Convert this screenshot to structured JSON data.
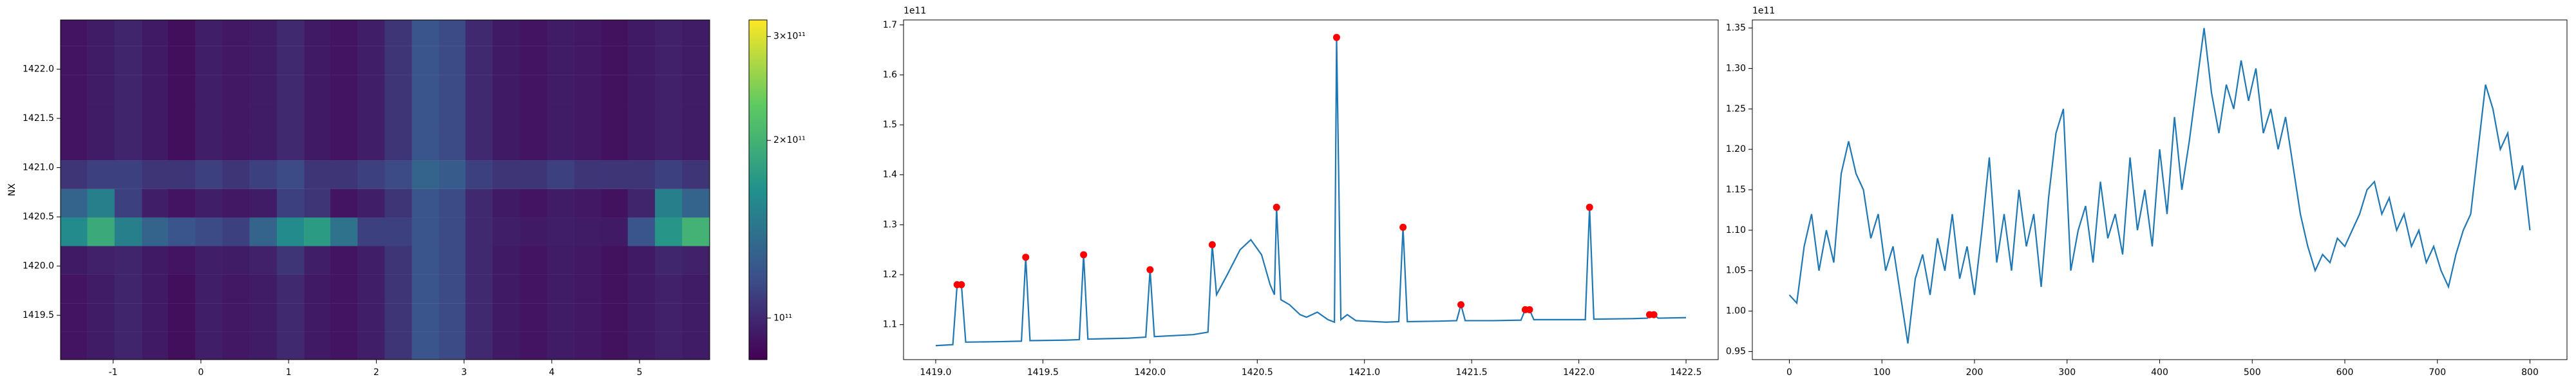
{
  "chart_data": [
    {
      "type": "heatmap",
      "ylabel": "NX",
      "colormap": "viridis",
      "cscale": "log",
      "x": [
        -1.45,
        -1.14,
        -0.83,
        -0.52,
        -0.22,
        0.09,
        0.4,
        0.71,
        1.02,
        1.33,
        1.63,
        1.94,
        2.25,
        2.56,
        2.87,
        3.17,
        3.48,
        3.79,
        4.1,
        4.41,
        4.72,
        5.02,
        5.33,
        5.64
      ],
      "y": [
        1419.19,
        1419.48,
        1419.77,
        1420.06,
        1420.35,
        1420.64,
        1420.93,
        1421.22,
        1421.51,
        1421.8,
        1422.09,
        1422.38
      ],
      "z": [
        [
          92000000000.0,
          95000000000.0,
          98000000000.0,
          94000000000.0,
          90000000000.0,
          96000000000.0,
          93000000000.0,
          95000000000.0,
          100000000000.0,
          94000000000.0,
          92000000000.0,
          96000000000.0,
          105000000000.0,
          120000000000.0,
          115000000000.0,
          100000000000.0,
          94000000000.0,
          92000000000.0,
          95000000000.0,
          93000000000.0,
          91000000000.0,
          94000000000.0,
          97000000000.0,
          95000000000.0
        ],
        [
          92000000000.0,
          95000000000.0,
          98000000000.0,
          94000000000.0,
          90000000000.0,
          96000000000.0,
          93000000000.0,
          95000000000.0,
          100000000000.0,
          94000000000.0,
          92000000000.0,
          96000000000.0,
          105000000000.0,
          120000000000.0,
          115000000000.0,
          100000000000.0,
          94000000000.0,
          92000000000.0,
          95000000000.0,
          93000000000.0,
          91000000000.0,
          94000000000.0,
          97000000000.0,
          95000000000.0
        ],
        [
          92000000000.0,
          95000000000.0,
          98000000000.0,
          94000000000.0,
          90000000000.0,
          96000000000.0,
          93000000000.0,
          95000000000.0,
          100000000000.0,
          94000000000.0,
          92000000000.0,
          96000000000.0,
          105000000000.0,
          120000000000.0,
          115000000000.0,
          100000000000.0,
          94000000000.0,
          92000000000.0,
          95000000000.0,
          93000000000.0,
          91000000000.0,
          94000000000.0,
          97000000000.0,
          95000000000.0
        ],
        [
          94000000000.0,
          97000000000.0,
          98000000000.0,
          94000000000.0,
          92000000000.0,
          96000000000.0,
          95000000000.0,
          97000000000.0,
          105000000000.0,
          96000000000.0,
          92000000000.0,
          96000000000.0,
          105000000000.0,
          120000000000.0,
          115000000000.0,
          100000000000.0,
          94000000000.0,
          92000000000.0,
          95000000000.0,
          93000000000.0,
          91000000000.0,
          94000000000.0,
          99000000000.0,
          97000000000.0
        ],
        [
          160000000000.0,
          190000000000.0,
          150000000000.0,
          130000000000.0,
          120000000000.0,
          115000000000.0,
          110000000000.0,
          130000000000.0,
          160000000000.0,
          175000000000.0,
          140000000000.0,
          110000000000.0,
          110000000000.0,
          120000000000.0,
          115000000000.0,
          100000000000.0,
          96000000000.0,
          94000000000.0,
          96000000000.0,
          95000000000.0,
          94000000000.0,
          120000000000.0,
          170000000000.0,
          200000000000.0
        ],
        [
          130000000000.0,
          150000000000.0,
          110000000000.0,
          96000000000.0,
          92000000000.0,
          96000000000.0,
          93000000000.0,
          95000000000.0,
          110000000000.0,
          105000000000.0,
          92000000000.0,
          96000000000.0,
          105000000000.0,
          120000000000.0,
          115000000000.0,
          100000000000.0,
          94000000000.0,
          92000000000.0,
          95000000000.0,
          93000000000.0,
          91000000000.0,
          98000000000.0,
          150000000000.0,
          130000000000.0
        ],
        [
          105000000000.0,
          110000000000.0,
          110000000000.0,
          105000000000.0,
          105000000000.0,
          110000000000.0,
          105000000000.0,
          110000000000.0,
          115000000000.0,
          105000000000.0,
          105000000000.0,
          110000000000.0,
          115000000000.0,
          130000000000.0,
          125000000000.0,
          110000000000.0,
          105000000000.0,
          105000000000.0,
          110000000000.0,
          105000000000.0,
          105000000000.0,
          105000000000.0,
          110000000000.0,
          105000000000.0
        ],
        [
          92000000000.0,
          95000000000.0,
          98000000000.0,
          94000000000.0,
          90000000000.0,
          96000000000.0,
          93000000000.0,
          95000000000.0,
          100000000000.0,
          94000000000.0,
          92000000000.0,
          96000000000.0,
          105000000000.0,
          120000000000.0,
          115000000000.0,
          100000000000.0,
          94000000000.0,
          92000000000.0,
          95000000000.0,
          93000000000.0,
          91000000000.0,
          94000000000.0,
          97000000000.0,
          95000000000.0
        ],
        [
          92000000000.0,
          95000000000.0,
          98000000000.0,
          94000000000.0,
          90000000000.0,
          96000000000.0,
          93000000000.0,
          95000000000.0,
          100000000000.0,
          94000000000.0,
          92000000000.0,
          96000000000.0,
          105000000000.0,
          120000000000.0,
          115000000000.0,
          100000000000.0,
          94000000000.0,
          92000000000.0,
          95000000000.0,
          93000000000.0,
          91000000000.0,
          94000000000.0,
          97000000000.0,
          95000000000.0
        ],
        [
          92000000000.0,
          95000000000.0,
          98000000000.0,
          94000000000.0,
          90000000000.0,
          96000000000.0,
          93000000000.0,
          95000000000.0,
          100000000000.0,
          94000000000.0,
          92000000000.0,
          96000000000.0,
          105000000000.0,
          120000000000.0,
          115000000000.0,
          100000000000.0,
          94000000000.0,
          92000000000.0,
          95000000000.0,
          93000000000.0,
          91000000000.0,
          94000000000.0,
          97000000000.0,
          95000000000.0
        ],
        [
          92000000000.0,
          95000000000.0,
          98000000000.0,
          94000000000.0,
          90000000000.0,
          96000000000.0,
          93000000000.0,
          95000000000.0,
          100000000000.0,
          94000000000.0,
          92000000000.0,
          96000000000.0,
          105000000000.0,
          120000000000.0,
          115000000000.0,
          100000000000.0,
          94000000000.0,
          92000000000.0,
          95000000000.0,
          93000000000.0,
          91000000000.0,
          94000000000.0,
          97000000000.0,
          95000000000.0
        ],
        [
          92000000000.0,
          95000000000.0,
          98000000000.0,
          94000000000.0,
          90000000000.0,
          96000000000.0,
          93000000000.0,
          95000000000.0,
          100000000000.0,
          94000000000.0,
          92000000000.0,
          96000000000.0,
          105000000000.0,
          120000000000.0,
          115000000000.0,
          100000000000.0,
          94000000000.0,
          92000000000.0,
          95000000000.0,
          93000000000.0,
          91000000000.0,
          94000000000.0,
          97000000000.0,
          95000000000.0
        ]
      ],
      "xlim": [
        -1.6,
        5.8
      ],
      "ylim": [
        1419.05,
        1422.5
      ],
      "xticks": [
        -1,
        0,
        1,
        2,
        3,
        4,
        5
      ],
      "yticks": [
        1419.5,
        {
          "value": 1420,
          "label": "1420.0"
        },
        1420.5,
        {
          "value": 1421,
          "label": "1421.0"
        },
        1421.5,
        {
          "value": 1422,
          "label": "1422.0"
        }
      ],
      "clim": [
        85000000000.0,
        320000000000.0
      ],
      "cticks": [
        {
          "value": 100000000000.0,
          "label": "10¹¹"
        },
        {
          "value": 200000000000.0,
          "label": "2×10¹¹"
        },
        {
          "value": 300000000000.0,
          "label": "3×10¹¹"
        }
      ]
    },
    {
      "type": "line",
      "offset": "1e11",
      "series": [
        {
          "color": "#1f77b4",
          "style": "line",
          "x": [
            1419.0,
            1419.08,
            1419.1,
            1419.12,
            1419.14,
            1419.3,
            1419.4,
            1419.42,
            1419.44,
            1419.6,
            1419.67,
            1419.69,
            1419.71,
            1419.9,
            1419.98,
            1420.0,
            1420.02,
            1420.2,
            1420.27,
            1420.29,
            1420.31,
            1420.36,
            1420.42,
            1420.47,
            1420.52,
            1420.56,
            1420.58,
            1420.59,
            1420.61,
            1420.65,
            1420.7,
            1420.73,
            1420.78,
            1420.83,
            1420.86,
            1420.87,
            1420.89,
            1420.92,
            1420.96,
            1421.1,
            1421.16,
            1421.18,
            1421.2,
            1421.35,
            1421.43,
            1421.45,
            1421.47,
            1421.6,
            1421.73,
            1421.75,
            1421.77,
            1421.79,
            1421.95,
            1422.03,
            1422.05,
            1422.07,
            1422.25,
            1422.32,
            1422.33,
            1422.35,
            1422.37,
            1422.5
          ],
          "values": [
            1.058,
            1.06,
            1.18,
            1.18,
            1.065,
            1.066,
            1.067,
            1.235,
            1.068,
            1.069,
            1.07,
            1.24,
            1.071,
            1.073,
            1.075,
            1.21,
            1.076,
            1.08,
            1.085,
            1.26,
            1.16,
            1.2,
            1.25,
            1.27,
            1.24,
            1.18,
            1.16,
            1.335,
            1.15,
            1.14,
            1.12,
            1.115,
            1.125,
            1.11,
            1.105,
            1.675,
            1.11,
            1.12,
            1.108,
            1.105,
            1.106,
            1.295,
            1.106,
            1.107,
            1.108,
            1.14,
            1.108,
            1.108,
            1.109,
            1.13,
            1.13,
            1.11,
            1.11,
            1.11,
            1.335,
            1.111,
            1.112,
            1.113,
            1.12,
            1.12,
            1.113,
            1.114
          ]
        },
        {
          "color": "#ff0000",
          "style": "points",
          "x": [
            1419.1,
            1419.12,
            1419.42,
            1419.69,
            1420.0,
            1420.29,
            1420.59,
            1420.87,
            1421.18,
            1421.45,
            1421.75,
            1421.77,
            1422.05,
            1422.33,
            1422.35
          ],
          "values": [
            1.18,
            1.18,
            1.235,
            1.24,
            1.21,
            1.26,
            1.335,
            1.675,
            1.295,
            1.14,
            1.13,
            1.13,
            1.335,
            1.12,
            1.12
          ]
        }
      ],
      "xlim": [
        1418.85,
        1422.65
      ],
      "ylim": [
        1.03,
        1.71
      ],
      "xticks": [
        {
          "value": 1419,
          "label": "1419.0"
        },
        1419.5,
        {
          "value": 1420,
          "label": "1420.0"
        },
        1420.5,
        {
          "value": 1421,
          "label": "1421.0"
        },
        1421.5,
        {
          "value": 1422,
          "label": "1422.0"
        },
        1422.5
      ],
      "yticks": [
        1.1,
        1.2,
        1.3,
        1.4,
        1.5,
        1.6,
        1.7
      ]
    },
    {
      "type": "line",
      "offset": "1e11",
      "series": [
        {
          "color": "#1f77b4",
          "style": "line",
          "x": [
            0,
            8,
            16,
            24,
            32,
            40,
            48,
            56,
            64,
            72,
            80,
            88,
            96,
            104,
            112,
            120,
            128,
            136,
            144,
            152,
            160,
            168,
            176,
            184,
            192,
            200,
            208,
            216,
            224,
            232,
            240,
            248,
            256,
            264,
            272,
            280,
            288,
            296,
            304,
            312,
            320,
            328,
            336,
            344,
            352,
            360,
            368,
            376,
            384,
            392,
            400,
            408,
            416,
            424,
            432,
            440,
            448,
            456,
            464,
            472,
            480,
            488,
            496,
            504,
            512,
            520,
            528,
            536,
            544,
            552,
            560,
            568,
            576,
            584,
            592,
            600,
            608,
            616,
            624,
            632,
            640,
            648,
            656,
            664,
            672,
            680,
            688,
            696,
            704,
            712,
            720,
            728,
            736,
            744,
            752,
            760,
            768,
            776,
            784,
            792,
            800
          ],
          "values": [
            1.02,
            1.01,
            1.08,
            1.12,
            1.05,
            1.1,
            1.06,
            1.17,
            1.21,
            1.17,
            1.15,
            1.09,
            1.12,
            1.05,
            1.08,
            1.02,
            0.96,
            1.04,
            1.07,
            1.02,
            1.09,
            1.05,
            1.12,
            1.04,
            1.08,
            1.02,
            1.1,
            1.19,
            1.06,
            1.12,
            1.05,
            1.15,
            1.08,
            1.12,
            1.03,
            1.14,
            1.22,
            1.25,
            1.05,
            1.1,
            1.13,
            1.06,
            1.16,
            1.09,
            1.12,
            1.07,
            1.19,
            1.1,
            1.15,
            1.08,
            1.2,
            1.12,
            1.24,
            1.15,
            1.21,
            1.28,
            1.35,
            1.27,
            1.22,
            1.28,
            1.25,
            1.31,
            1.26,
            1.3,
            1.22,
            1.25,
            1.2,
            1.24,
            1.18,
            1.12,
            1.08,
            1.05,
            1.07,
            1.06,
            1.09,
            1.08,
            1.1,
            1.12,
            1.15,
            1.16,
            1.12,
            1.14,
            1.1,
            1.12,
            1.08,
            1.1,
            1.06,
            1.08,
            1.05,
            1.03,
            1.07,
            1.1,
            1.12,
            1.2,
            1.28,
            1.25,
            1.2,
            1.22,
            1.15,
            1.18,
            1.1
          ]
        }
      ],
      "xlim": [
        -40,
        840
      ],
      "ylim": [
        0.94,
        1.36
      ],
      "xticks": [
        0,
        100,
        200,
        300,
        400,
        500,
        600,
        700,
        800
      ],
      "yticks": [
        0.95,
        {
          "value": 1.0,
          "label": "1.00"
        },
        1.05,
        {
          "value": 1.1,
          "label": "1.10"
        },
        1.15,
        {
          "value": 1.2,
          "label": "1.20"
        },
        1.25,
        {
          "value": 1.3,
          "label": "1.30"
        },
        1.35
      ]
    }
  ]
}
